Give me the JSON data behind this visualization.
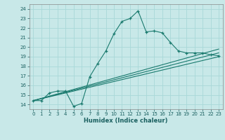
{
  "title": "",
  "xlabel": "Humidex (Indice chaleur)",
  "xlim": [
    -0.5,
    23.5
  ],
  "ylim": [
    13.5,
    24.5
  ],
  "xticks": [
    0,
    1,
    2,
    3,
    4,
    5,
    6,
    7,
    8,
    9,
    10,
    11,
    12,
    13,
    14,
    15,
    16,
    17,
    18,
    19,
    20,
    21,
    22,
    23
  ],
  "yticks": [
    14,
    15,
    16,
    17,
    18,
    19,
    20,
    21,
    22,
    23,
    24
  ],
  "bg_color": "#c8e8e8",
  "line_color": "#1a7a6e",
  "grid_color": "#a8d8d8",
  "main_line_x": [
    0,
    1,
    2,
    3,
    4,
    5,
    6,
    7,
    8,
    9,
    10,
    11,
    12,
    13,
    14,
    15,
    16,
    17,
    18,
    19,
    20,
    21,
    22,
    23
  ],
  "main_line_y": [
    14.4,
    14.4,
    15.2,
    15.4,
    15.4,
    13.8,
    14.1,
    16.9,
    18.3,
    19.6,
    21.4,
    22.7,
    23.0,
    23.8,
    21.6,
    21.7,
    21.5,
    20.5,
    19.6,
    19.4,
    19.4,
    19.4,
    19.2,
    19.1
  ],
  "trend_lines": [
    {
      "x": [
        0,
        23
      ],
      "y": [
        14.4,
        19.0
      ]
    },
    {
      "x": [
        0,
        23
      ],
      "y": [
        14.4,
        19.4
      ]
    },
    {
      "x": [
        0,
        23
      ],
      "y": [
        14.4,
        19.8
      ]
    }
  ],
  "tick_label_color": "#1a6060",
  "xlabel_color": "#1a6060",
  "spine_color": "#888888"
}
